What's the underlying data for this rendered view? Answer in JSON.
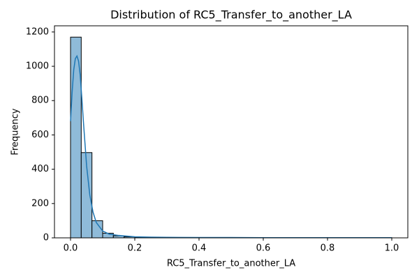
{
  "chart_data": {
    "type": "histogram",
    "title": "Distribution of RC5_Transfer_to_another_LA",
    "xlabel": "RC5_Transfer_to_another_LA",
    "ylabel": "Frequency",
    "bins": [
      0,
      0.0333,
      0.0667,
      0.1,
      0.1333,
      0.1667,
      0.2,
      0.2333,
      0.2667,
      0.3,
      0.3333,
      0.3667,
      0.4,
      0.4333,
      0.4667,
      0.5,
      0.5333,
      0.5667,
      0.6,
      0.6333,
      0.6667,
      0.7,
      0.7333,
      0.7667,
      0.8,
      0.8333,
      0.8667,
      0.9,
      0.9333,
      0.9667,
      1
    ],
    "values": [
      1170,
      497,
      100,
      27,
      12,
      6,
      3,
      2,
      2,
      1,
      1,
      1,
      1,
      0,
      1,
      1,
      0,
      0,
      0,
      0,
      0,
      0,
      0,
      0,
      0,
      0,
      0,
      0,
      0,
      1
    ],
    "color": "#8fbbd9",
    "edgecolor": "#000000",
    "kde": {
      "color": "#1f77b4",
      "x": [
        0,
        0.005,
        0.01,
        0.015,
        0.02,
        0.025,
        0.03,
        0.035,
        0.04,
        0.05,
        0.06,
        0.07,
        0.08,
        0.1,
        0.12,
        0.15,
        0.2,
        0.25,
        0.3,
        0.4,
        0.5,
        0.6,
        0.7,
        0.8,
        0.9,
        1
      ],
      "y": [
        680,
        850,
        980,
        1045,
        1060,
        1030,
        950,
        820,
        680,
        420,
        250,
        150,
        90,
        40,
        22,
        14,
        6,
        4,
        3,
        2,
        2,
        1,
        1,
        1,
        1,
        1
      ]
    },
    "xlim": [
      -0.05,
      1.05
    ],
    "xticks": [
      {
        "value": 0,
        "label": "0.0"
      },
      0.2,
      0.4,
      0.6,
      0.8,
      {
        "value": 1,
        "label": "1.0"
      }
    ],
    "ylim": [
      0,
      1236
    ],
    "yticks": [
      0,
      200,
      400,
      600,
      800,
      1000,
      1200
    ]
  }
}
